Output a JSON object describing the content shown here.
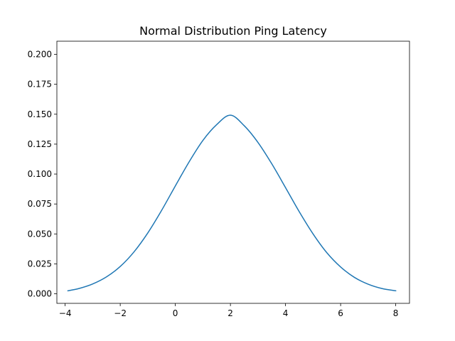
{
  "chart_data": {
    "type": "line",
    "title": "Normal Distribution Ping Latency",
    "xlabel": "",
    "ylabel": "",
    "xlim": [
      -4.3,
      8.5
    ],
    "ylim": [
      -0.008,
      0.211
    ],
    "x_ticks": [
      -4,
      -2,
      0,
      2,
      4,
      6,
      8
    ],
    "x_tick_labels": [
      "−4",
      "−2",
      "0",
      "2",
      "4",
      "6",
      "8"
    ],
    "y_ticks": [
      0.0,
      0.025,
      0.05,
      0.075,
      0.1,
      0.125,
      0.15,
      0.175,
      0.2
    ],
    "y_tick_labels": [
      "0.000",
      "0.025",
      "0.050",
      "0.075",
      "0.100",
      "0.125",
      "0.150",
      "0.175",
      "0.200"
    ],
    "grid": false,
    "series": [
      {
        "color": "#1f77b4",
        "x": [
          -3.9,
          -3.5,
          -3.0,
          -2.5,
          -2.0,
          -1.5,
          -1.0,
          -0.5,
          0.0,
          0.5,
          1.0,
          1.5,
          2.0,
          2.5,
          3.0,
          3.5,
          4.0,
          4.5,
          5.0,
          5.5,
          6.0,
          6.5,
          7.0,
          7.5,
          8.0
        ],
        "y": [
          0.0025,
          0.0044,
          0.0082,
          0.0141,
          0.0228,
          0.035,
          0.0508,
          0.0696,
          0.0901,
          0.1102,
          0.1281,
          0.1413,
          0.1492,
          0.1404,
          0.1264,
          0.1086,
          0.0887,
          0.0685,
          0.05,
          0.0343,
          0.0224,
          0.0137,
          0.008,
          0.0044,
          0.0025
        ]
      }
    ]
  }
}
